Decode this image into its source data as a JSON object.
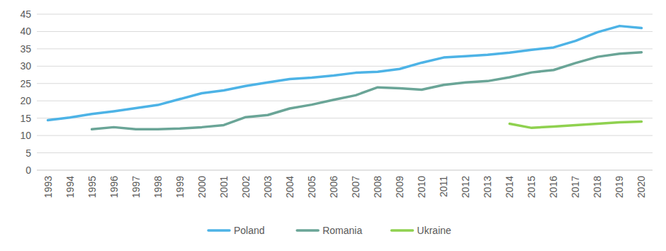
{
  "chart_data": {
    "type": "line",
    "categories": [
      "1993",
      "1994",
      "1995",
      "1996",
      "1997",
      "1998",
      "1999",
      "2000",
      "2001",
      "2002",
      "2003",
      "2004",
      "2005",
      "2006",
      "2007",
      "2008",
      "2009",
      "2010",
      "2011",
      "2012",
      "2013",
      "2014",
      "2015",
      "2016",
      "2017",
      "2018",
      "2019",
      "2020"
    ],
    "series": [
      {
        "name": "Poland",
        "color": "#4db3e6",
        "values": [
          14.4,
          15.2,
          16.2,
          17.0,
          17.9,
          18.8,
          20.5,
          22.2,
          23.0,
          24.3,
          25.3,
          26.3,
          26.7,
          27.3,
          28.1,
          28.4,
          29.2,
          31.0,
          32.5,
          32.9,
          33.3,
          33.9,
          34.7,
          35.4,
          37.3,
          39.8,
          41.6,
          41.0
        ]
      },
      {
        "name": "Romania",
        "color": "#6aa597",
        "values": [
          null,
          null,
          11.8,
          12.4,
          11.8,
          11.8,
          12.0,
          12.4,
          13.0,
          15.3,
          15.9,
          17.8,
          18.9,
          20.3,
          21.6,
          23.9,
          23.6,
          23.2,
          24.6,
          25.3,
          25.7,
          26.8,
          28.2,
          28.9,
          30.9,
          32.7,
          33.6,
          34.0
        ]
      },
      {
        "name": "Ukraine",
        "color": "#8fd14f",
        "values": [
          null,
          null,
          null,
          null,
          null,
          null,
          null,
          null,
          null,
          null,
          null,
          null,
          null,
          null,
          null,
          null,
          null,
          null,
          null,
          null,
          null,
          13.4,
          12.2,
          12.6,
          13.0,
          13.4,
          13.8,
          14.0
        ]
      }
    ],
    "ylim": [
      0,
      45
    ],
    "yticks": [
      0,
      5,
      10,
      15,
      20,
      25,
      30,
      35,
      40,
      45
    ],
    "grid": true,
    "legend": "bottom"
  }
}
